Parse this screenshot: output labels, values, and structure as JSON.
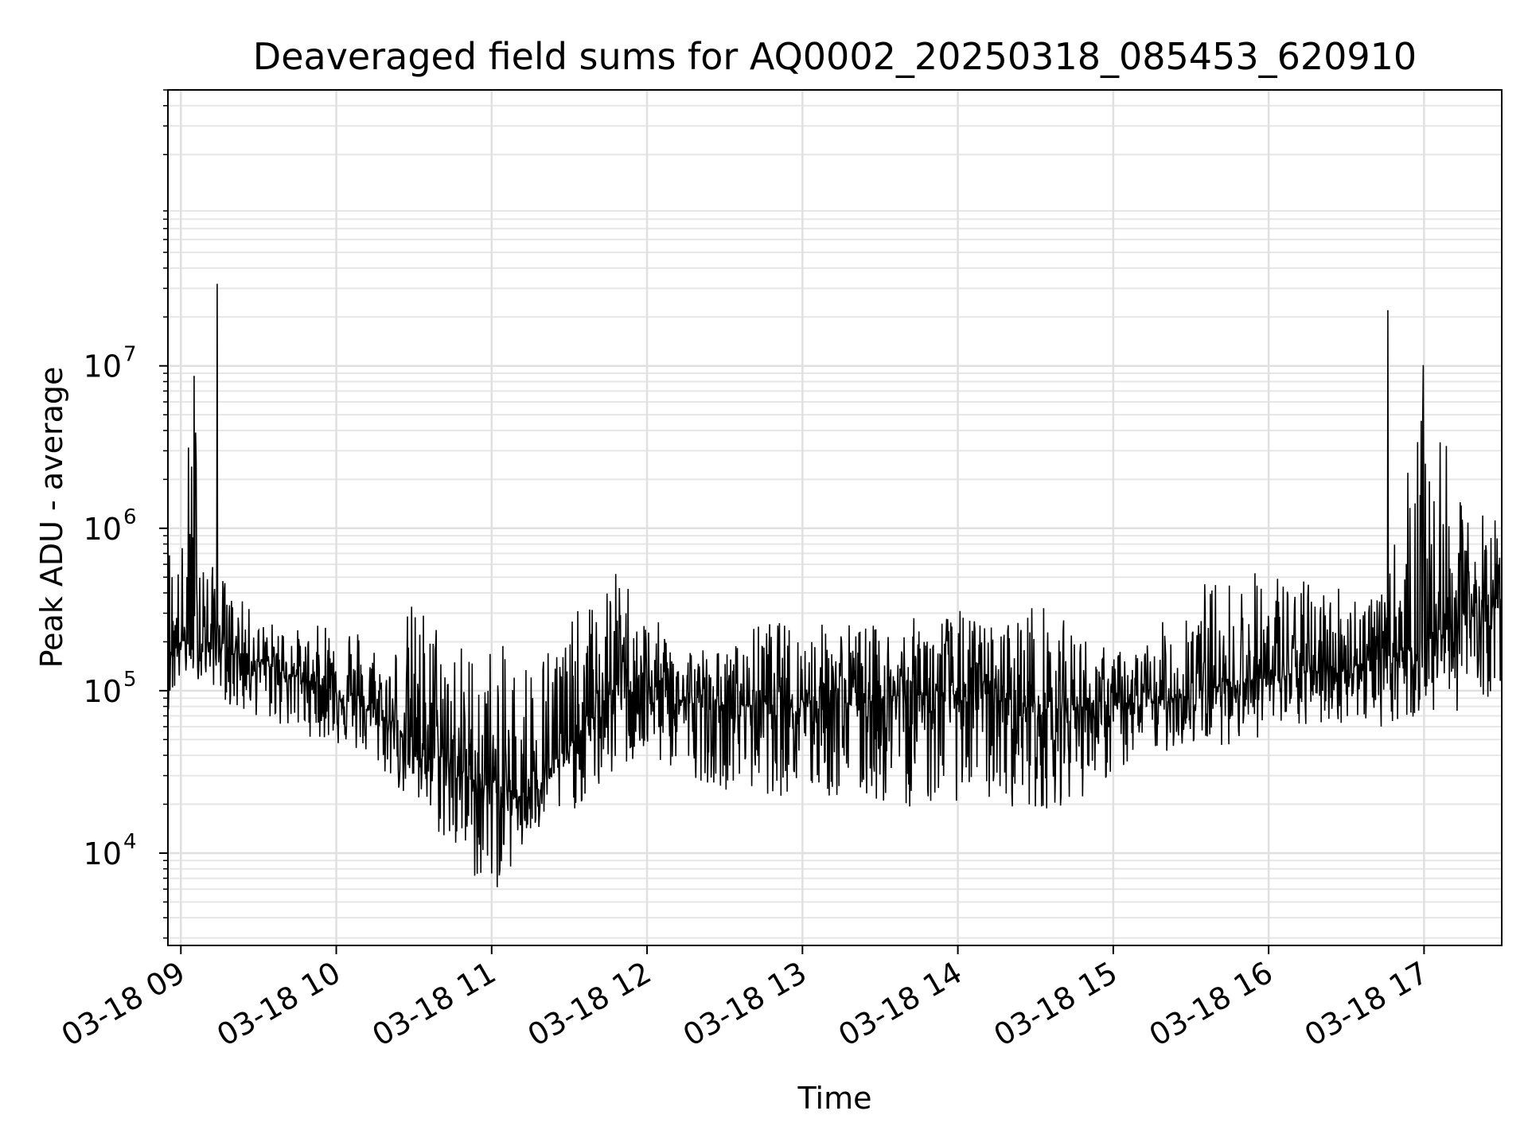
{
  "chart_data": {
    "type": "line",
    "title": "Deaveraged field sums for AQ0002_20250318_085453_620910",
    "xlabel": "Time",
    "ylabel": "Peak ADU - average",
    "yscale": "log",
    "grid": true,
    "xlim": [
      "03-18 08:55",
      "03-18 17:30"
    ],
    "ylim": [
      2700,
      500000000
    ],
    "x_ticks": [
      "03-18 09",
      "03-18 10",
      "03-18 11",
      "03-18 12",
      "03-18 13",
      "03-18 14",
      "03-18 15",
      "03-18 16",
      "03-18 17"
    ],
    "y_ticks": [
      {
        "base": "10",
        "exp": "4",
        "value": 10000
      },
      {
        "base": "10",
        "exp": "5",
        "value": 100000
      },
      {
        "base": "10",
        "exp": "6",
        "value": 1000000
      },
      {
        "base": "10",
        "exp": "7",
        "value": 10000000
      }
    ],
    "series": [
      {
        "color": "#000000",
        "x": [
          "03-18 08:55",
          "03-18 09:00",
          "03-18 09:05",
          "03-18 09:10",
          "03-18 09:15",
          "03-18 09:20",
          "03-18 09:25",
          "03-18 09:30",
          "03-18 09:40",
          "03-18 09:50",
          "03-18 10:00",
          "03-18 10:10",
          "03-18 10:20",
          "03-18 10:30",
          "03-18 10:40",
          "03-18 10:50",
          "03-18 11:00",
          "03-18 11:10",
          "03-18 11:20",
          "03-18 11:30",
          "03-18 11:40",
          "03-18 11:50",
          "03-18 12:00",
          "03-18 12:15",
          "03-18 12:30",
          "03-18 12:45",
          "03-18 13:00",
          "03-18 13:15",
          "03-18 13:30",
          "03-18 13:45",
          "03-18 14:00",
          "03-18 14:15",
          "03-18 14:30",
          "03-18 14:45",
          "03-18 15:00",
          "03-18 15:15",
          "03-18 15:30",
          "03-18 15:45",
          "03-18 16:00",
          "03-18 16:15",
          "03-18 16:30",
          "03-18 16:45",
          "03-18 17:00",
          "03-18 17:15",
          "03-18 17:30"
        ],
        "y": [
          170000,
          200000,
          210000,
          190000,
          200000,
          180000,
          160000,
          150000,
          130000,
          115000,
          100000,
          80000,
          65000,
          50000,
          40000,
          30000,
          25000,
          22000,
          30000,
          45000,
          70000,
          120000,
          100000,
          85000,
          80000,
          85000,
          90000,
          85000,
          90000,
          95000,
          95000,
          95000,
          75000,
          80000,
          80000,
          85000,
          95000,
          110000,
          120000,
          130000,
          140000,
          160000,
          200000,
          300000,
          330000
        ],
        "y_min": [
          65000,
          100000,
          110000,
          100000,
          90000,
          60000,
          60000,
          60000,
          50000,
          45000,
          40000,
          35000,
          25000,
          15000,
          10000,
          6000,
          4000,
          7500,
          12000,
          15000,
          18000,
          25000,
          30000,
          25000,
          20000,
          18000,
          17000,
          16000,
          15000,
          14000,
          16000,
          15000,
          14000,
          16000,
          25000,
          35000,
          40000,
          40000,
          45000,
          50000,
          55000,
          50000,
          55000,
          60000,
          80000
        ],
        "y_max": [
          1400000,
          750000,
          32000000,
          750000,
          700000,
          450000,
          400000,
          300000,
          300000,
          250000,
          450000,
          300000,
          200000,
          560000,
          420000,
          270000,
          300000,
          250000,
          300000,
          400000,
          500000,
          800000,
          350000,
          250000,
          200000,
          350000,
          300000,
          350000,
          300000,
          350000,
          400000,
          300000,
          500000,
          300000,
          200000,
          250000,
          650000,
          650000,
          800000,
          600000,
          600000,
          450000,
          22000000,
          1700000,
          1600000
        ]
      }
    ],
    "spikes": [
      {
        "x": "03-18 09:14",
        "y": 32000000
      },
      {
        "x": "03-18 16:46",
        "y": 22000000
      }
    ]
  }
}
